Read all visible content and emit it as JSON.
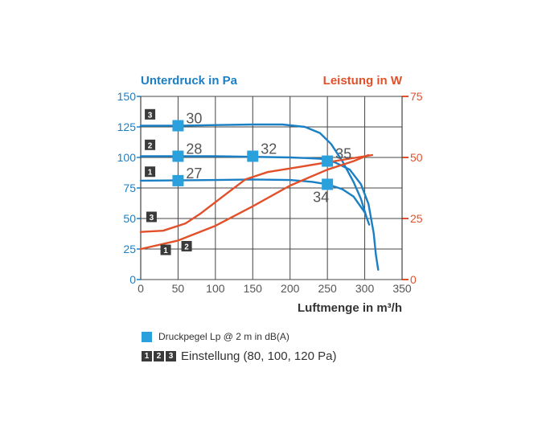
{
  "chart_data": {
    "type": "line",
    "xlabel": "Luftmenge in m³/h",
    "ylabel_left": "Unterdruck in Pa",
    "ylabel_right": "Leistung in W",
    "xlim": [
      0,
      350
    ],
    "ylim_left": [
      0,
      150
    ],
    "ylim_right": [
      0,
      75
    ],
    "x_ticks": [
      "0",
      "50",
      "100",
      "150",
      "200",
      "250",
      "300",
      "350"
    ],
    "y_ticks_left": [
      "0",
      "25",
      "50",
      "75",
      "100",
      "125",
      "150"
    ],
    "y_ticks_right": [
      "0",
      "25",
      "50",
      "75"
    ],
    "grid": true,
    "series": [
      {
        "axis": "left",
        "color": "#1b7fc4",
        "points": [
          [
            0,
            81
          ],
          [
            100,
            81.5
          ],
          [
            150,
            82
          ],
          [
            200,
            81.5
          ],
          [
            230,
            80
          ],
          [
            250,
            78
          ],
          [
            270,
            74
          ],
          [
            285,
            68
          ],
          [
            300,
            55
          ],
          [
            306,
            45
          ]
        ]
      },
      {
        "axis": "left",
        "color": "#1b7fc4",
        "points": [
          [
            0,
            101
          ],
          [
            50,
            101
          ],
          [
            100,
            101
          ],
          [
            150,
            100.5
          ],
          [
            200,
            100
          ],
          [
            240,
            99
          ],
          [
            260,
            96
          ],
          [
            280,
            90
          ],
          [
            295,
            78
          ],
          [
            305,
            62
          ],
          [
            312,
            38
          ],
          [
            315,
            20
          ],
          [
            318,
            8
          ]
        ]
      },
      {
        "axis": "left",
        "color": "#1b7fc4",
        "points": [
          [
            0,
            126
          ],
          [
            50,
            126
          ],
          [
            100,
            126.5
          ],
          [
            150,
            127
          ],
          [
            190,
            127
          ],
          [
            220,
            125
          ],
          [
            240,
            120
          ],
          [
            255,
            111
          ],
          [
            270,
            97
          ],
          [
            285,
            80
          ],
          [
            295,
            66
          ],
          [
            302,
            52
          ]
        ]
      },
      {
        "axis": "right",
        "color": "#e2502a",
        "points": [
          [
            0,
            12.5
          ],
          [
            50,
            16
          ],
          [
            100,
            22
          ],
          [
            150,
            30
          ],
          [
            200,
            38.5
          ],
          [
            250,
            45
          ],
          [
            285,
            48.5
          ],
          [
            305,
            51
          ]
        ]
      },
      {
        "axis": "right",
        "color": "#e2502a",
        "points": [
          [
            0,
            19.5
          ],
          [
            30,
            20
          ],
          [
            60,
            23
          ],
          [
            80,
            27
          ],
          [
            110,
            34
          ],
          [
            140,
            41
          ],
          [
            170,
            44
          ],
          [
            210,
            46
          ],
          [
            250,
            48
          ],
          [
            280,
            49.5
          ],
          [
            310,
            51
          ]
        ]
      }
    ],
    "markers": [
      {
        "x": 50,
        "y": 126,
        "label": "30"
      },
      {
        "x": 50,
        "y": 101,
        "label": "28"
      },
      {
        "x": 150,
        "y": 101,
        "label": "32"
      },
      {
        "x": 250,
        "y": 97,
        "label": "35"
      },
      {
        "x": 50,
        "y": 81,
        "label": "27"
      },
      {
        "x": 250,
        "y": 78,
        "label": "34"
      }
    ],
    "badges": [
      {
        "text": "3",
        "x": 13,
        "y": 135
      },
      {
        "text": "2",
        "x": 13,
        "y": 110
      },
      {
        "text": "1",
        "x": 13,
        "y": 88
      },
      {
        "text": "3",
        "x": 15,
        "y": 51
      },
      {
        "text": "1",
        "x": 34,
        "y": 24
      },
      {
        "text": "2",
        "x": 62,
        "y": 27
      }
    ],
    "colors": {
      "pressure": "#1b7fc4",
      "power": "#e2502a",
      "marker": "#2aa0dd",
      "badge": "#3a3a3a",
      "grid": "#444444"
    }
  },
  "legend": {
    "marker_text": "Druckpegel Lp @ 2 m in dB(A)",
    "badges": [
      "1",
      "2",
      "3"
    ],
    "setting_text": "Einstellung (80, 100, 120 Pa)"
  }
}
